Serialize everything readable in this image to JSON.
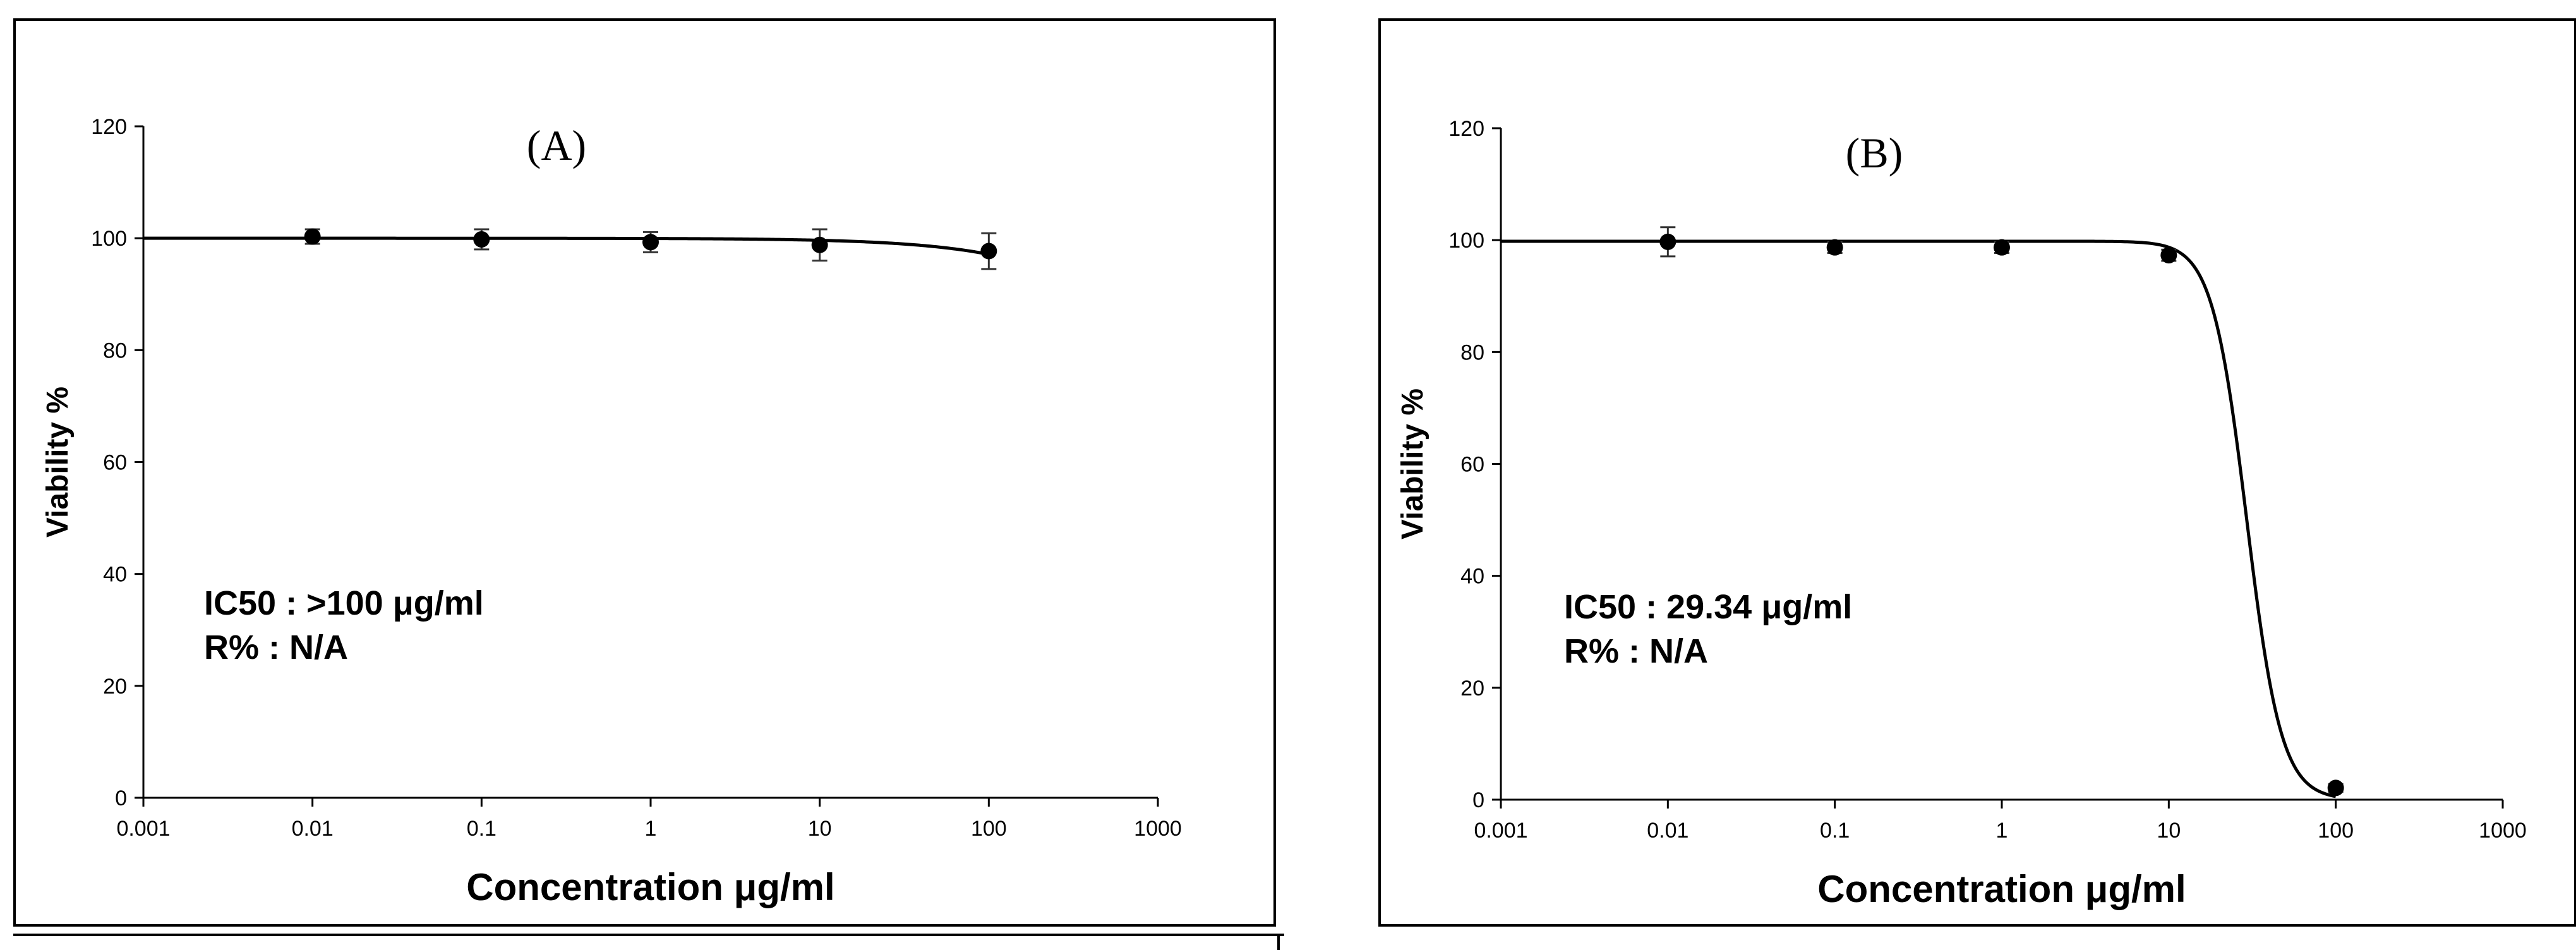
{
  "chart_data": [
    {
      "type": "scatter",
      "panel_label": "A",
      "xlabel": "Concentration μg/ml",
      "ylabel": "Viability %",
      "x_scale": "log",
      "xlim": [
        0.001,
        1000
      ],
      "ylim": [
        0,
        120
      ],
      "x_ticks": [
        "0.001",
        "0.01",
        "0.1",
        "1",
        "10",
        "100",
        "1000"
      ],
      "y_ticks": [
        "0",
        "20",
        "40",
        "60",
        "80",
        "100",
        "120"
      ],
      "grid": false,
      "points": [
        {
          "x": 0.01,
          "y": 100.3,
          "err": 1.3
        },
        {
          "x": 0.1,
          "y": 99.8,
          "err": 1.8
        },
        {
          "x": 1,
          "y": 99.3,
          "err": 1.8
        },
        {
          "x": 10,
          "y": 98.8,
          "err": 2.8
        },
        {
          "x": 100,
          "y": 97.7,
          "err": 3.2
        }
      ],
      "fit_curve": {
        "top": 100,
        "bottom": 0,
        "ic50": 5000,
        "hill": 0.9
      },
      "annotation_lines": [
        "IC50 : >100 μg/ml",
        "R% : N/A"
      ]
    },
    {
      "type": "scatter",
      "panel_label": "B",
      "xlabel": "Concentration μg/ml",
      "ylabel": "Viability %",
      "x_scale": "log",
      "xlim": [
        0.001,
        1000
      ],
      "ylim": [
        0,
        120
      ],
      "x_ticks": [
        "0.001",
        "0.01",
        "0.1",
        "1",
        "10",
        "100",
        "1000"
      ],
      "y_ticks": [
        "0",
        "20",
        "40",
        "60",
        "80",
        "100",
        "120"
      ],
      "grid": false,
      "points": [
        {
          "x": 0.01,
          "y": 99.7,
          "err": 2.6
        },
        {
          "x": 0.1,
          "y": 98.7,
          "err": 1.0
        },
        {
          "x": 1,
          "y": 98.7,
          "err": 1.0
        },
        {
          "x": 10,
          "y": 97.3,
          "err": 1.0
        },
        {
          "x": 100,
          "y": 2.1,
          "err": 0.7
        }
      ],
      "fit_curve": {
        "top": 99.8,
        "bottom": 0,
        "ic50": 29.34,
        "hill": 4.2
      },
      "annotation_lines": [
        "IC50 : 29.34 μg/ml",
        "R% : N/A"
      ]
    }
  ],
  "colors": {
    "ink": "#000000",
    "background": "#ffffff"
  }
}
